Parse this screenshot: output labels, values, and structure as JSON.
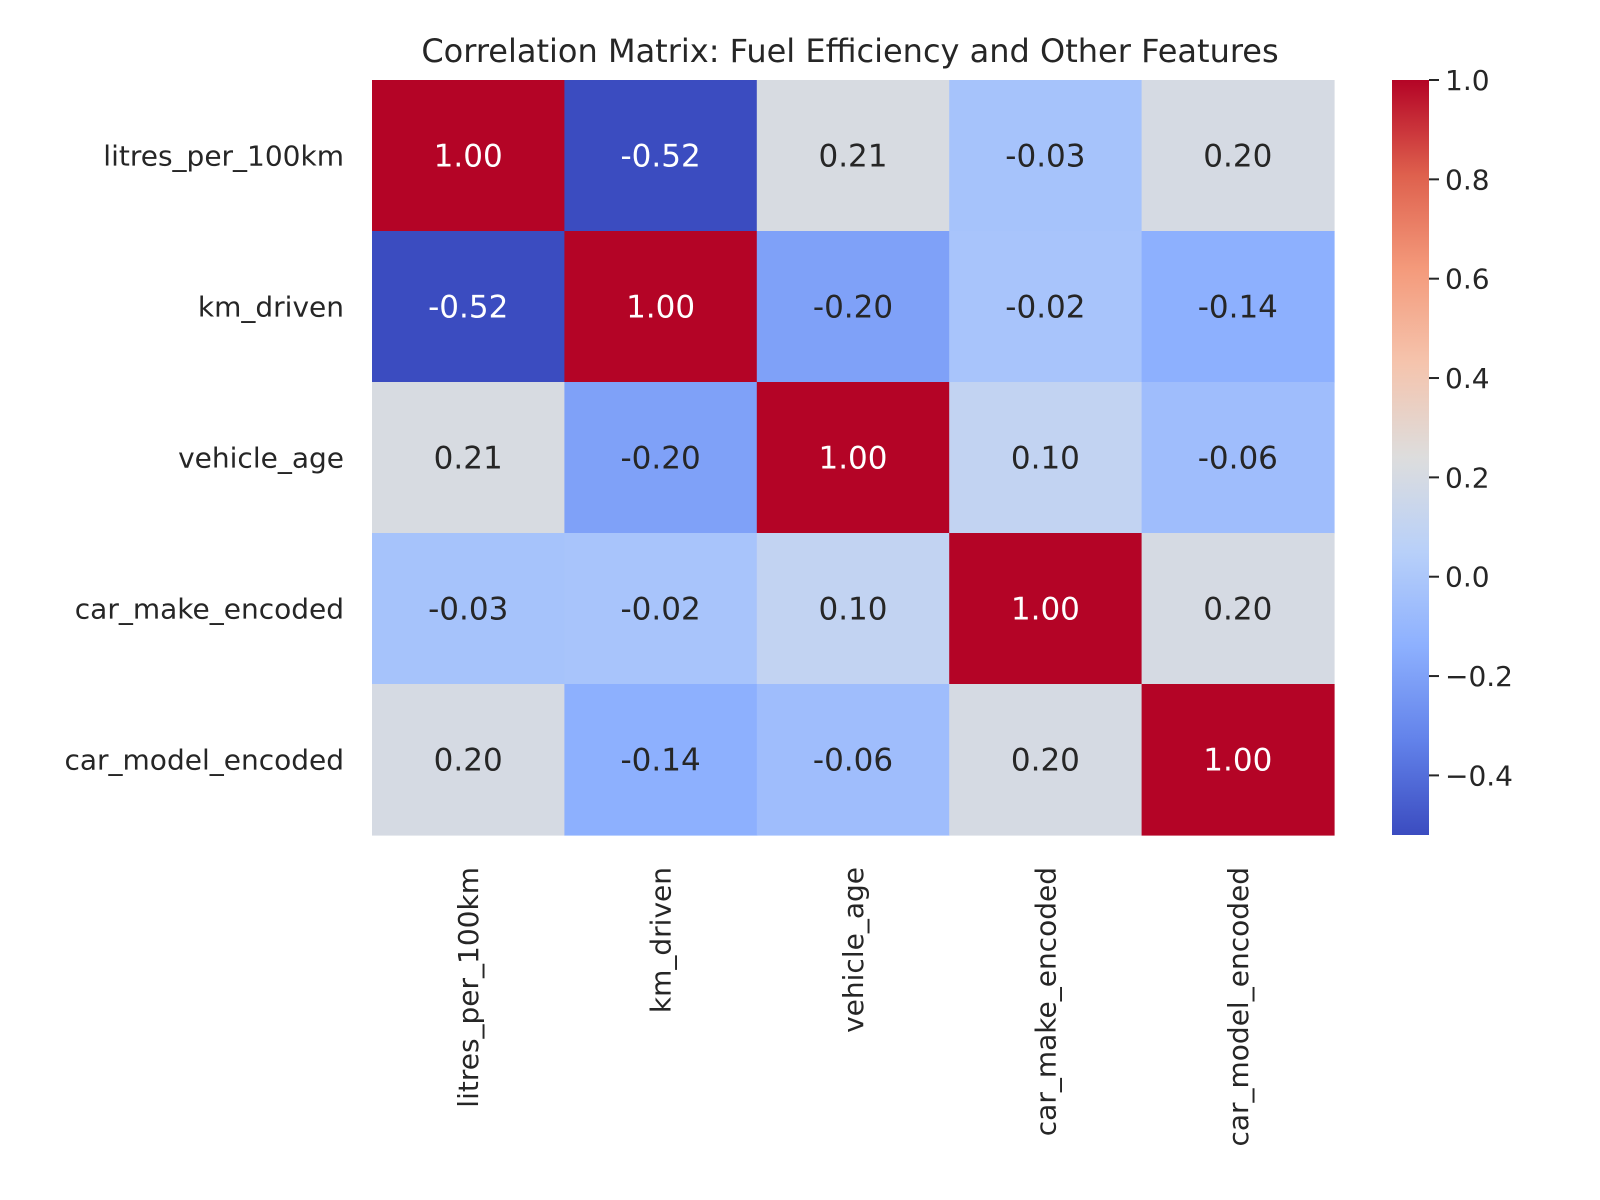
{
  "chart_data": {
    "type": "heatmap",
    "title": "Correlation Matrix: Fuel Efficiency and Other Features",
    "xlabel": "",
    "ylabel": "",
    "row_labels": [
      "litres_per_100km",
      "km_driven",
      "vehicle_age",
      "car_make_encoded",
      "car_model_encoded"
    ],
    "col_labels": [
      "litres_per_100km",
      "km_driven",
      "vehicle_age",
      "car_make_encoded",
      "car_model_encoded"
    ],
    "values": [
      [
        1.0,
        -0.52,
        0.21,
        -0.03,
        0.2
      ],
      [
        -0.52,
        1.0,
        -0.2,
        -0.02,
        -0.14
      ],
      [
        0.21,
        -0.2,
        1.0,
        0.1,
        -0.06
      ],
      [
        -0.03,
        -0.02,
        0.1,
        1.0,
        0.2
      ],
      [
        0.2,
        -0.14,
        -0.06,
        0.2,
        1.0
      ]
    ],
    "annotation_format": "0.00",
    "colormap": "coolwarm",
    "color_range": [
      -0.52,
      1.0
    ],
    "colorbar": {
      "ticks": [
        1.0,
        0.8,
        0.6,
        0.4,
        0.2,
        0.0,
        -0.2,
        -0.4
      ],
      "tick_labels": [
        "1.0",
        "0.8",
        "0.6",
        "0.4",
        "0.2",
        "0.0",
        "−0.2",
        "−0.4"
      ],
      "placement": "right"
    },
    "grid": false
  }
}
